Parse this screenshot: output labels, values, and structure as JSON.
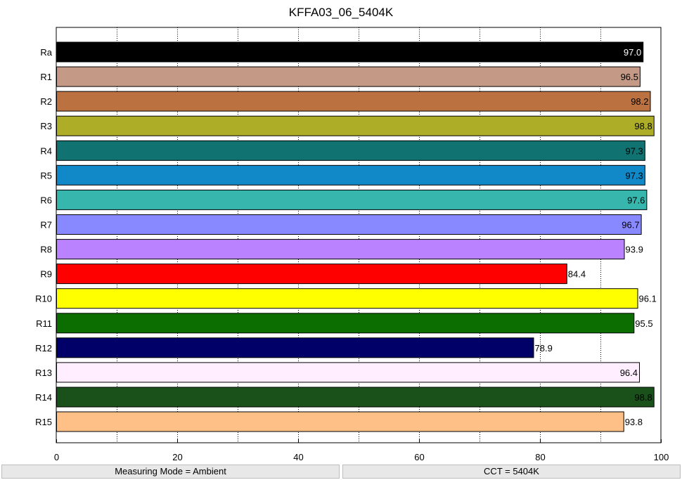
{
  "chart_data": {
    "type": "bar",
    "orientation": "horizontal",
    "title": "KFFA03_06_5404K",
    "categories": [
      "Ra",
      "R1",
      "R2",
      "R3",
      "R4",
      "R5",
      "R6",
      "R7",
      "R8",
      "R9",
      "R10",
      "R11",
      "R12",
      "R13",
      "R14",
      "R15"
    ],
    "values": [
      97.0,
      96.5,
      98.2,
      98.8,
      97.3,
      97.3,
      97.6,
      96.7,
      93.9,
      84.4,
      96.1,
      95.5,
      78.9,
      96.4,
      98.8,
      93.8
    ],
    "value_labels": [
      "97.0",
      "96.5",
      "98.2",
      "98.8",
      "97.3",
      "97.3",
      "97.6",
      "96.7",
      "93.9",
      "84.4",
      "96.1",
      "95.5",
      "78.9",
      "96.4",
      "98.8",
      "93.8"
    ],
    "colors": [
      "#000000",
      "#c49a87",
      "#bc7141",
      "#adad28",
      "#117272",
      "#1188c8",
      "#36b6ad",
      "#8888ff",
      "#bb82ff",
      "#ff0000",
      "#ffff00",
      "#0c6e00",
      "#000068",
      "#ffeeff",
      "#1a501a",
      "#ffc088"
    ],
    "label_colors": [
      "#ffffff",
      "#000000",
      "#000000",
      "#000000",
      "#000000",
      "#000000",
      "#000000",
      "#000000",
      "#000000",
      "#000000",
      "#000000",
      "#000000",
      "#000000",
      "#000000",
      "#000000",
      "#000000"
    ],
    "xlim": [
      0,
      100
    ],
    "xticks": [
      0,
      20,
      40,
      60,
      80,
      100
    ],
    "xtick_labels": [
      "0",
      "20",
      "40",
      "60",
      "80",
      "100"
    ],
    "grid_x": [
      10,
      20,
      30,
      40,
      50,
      60,
      70,
      80,
      90
    ],
    "grid": true,
    "xlabel": "",
    "ylabel": ""
  },
  "status_bar": {
    "left": "Measuring Mode = Ambient",
    "right": "CCT = 5404K"
  }
}
